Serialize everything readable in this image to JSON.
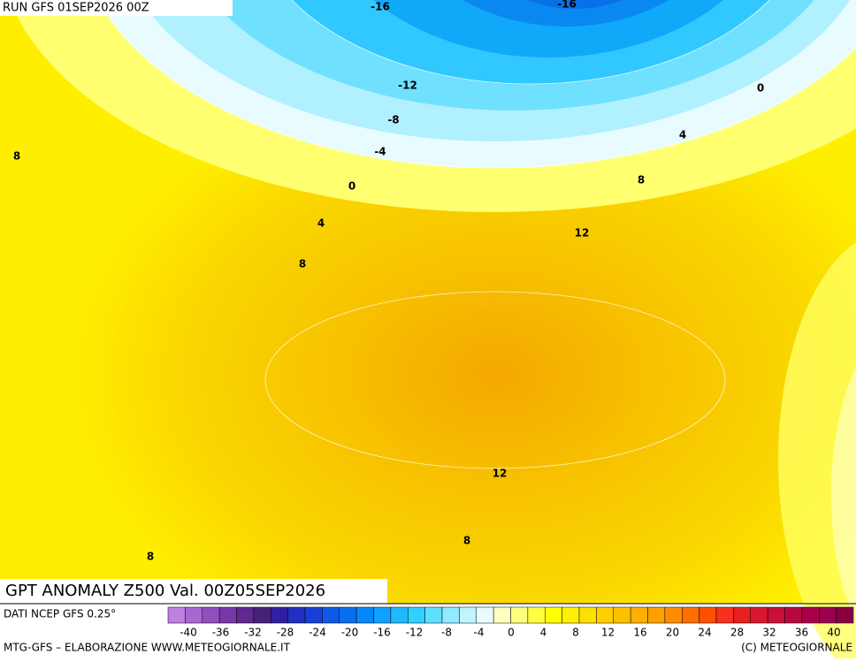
{
  "header": {
    "run": "RUN GFS 01SEP2026 00Z"
  },
  "map": {
    "contour_labels": [
      "-16",
      "-16",
      "-12",
      "-8",
      "-4",
      "0",
      "0",
      "4",
      "4",
      "8",
      "8",
      "8",
      "12",
      "12",
      "8",
      "8"
    ]
  },
  "title": "GPT ANOMALY Z500 Val. 00Z05SEP2026",
  "footer": {
    "source": "DATI NCEP GFS 0.25°",
    "credit": "MTG-GFS – ELABORAZIONE WWW.METEOGIORNALE.IT",
    "copyright": "(C) METEOGIORNALE"
  },
  "colorbar": {
    "colors": [
      "#c080e0",
      "#a868d0",
      "#9050c0",
      "#7838a8",
      "#602890",
      "#482078",
      "#3020a0",
      "#2030c0",
      "#1840d8",
      "#1058e8",
      "#0870f0",
      "#0888f8",
      "#10a0ff",
      "#20b8ff",
      "#30d0ff",
      "#60e0ff",
      "#90ecff",
      "#c0f4ff",
      "#e8fcff",
      "#ffffc0",
      "#ffff80",
      "#ffff40",
      "#ffff00",
      "#fff000",
      "#ffe000",
      "#ffd000",
      "#ffc000",
      "#ffb000",
      "#ffa000",
      "#ff8c00",
      "#ff7000",
      "#ff5000",
      "#f83020",
      "#e82020",
      "#d81830",
      "#c81038",
      "#b80840",
      "#a80048",
      "#980050",
      "#880040"
    ],
    "labels": [
      "-40",
      "-36",
      "-32",
      "-28",
      "-24",
      "-20",
      "-16",
      "-12",
      "-8",
      "-4",
      "0",
      "4",
      "8",
      "12",
      "16",
      "20",
      "24",
      "28",
      "32",
      "36",
      "40"
    ]
  }
}
